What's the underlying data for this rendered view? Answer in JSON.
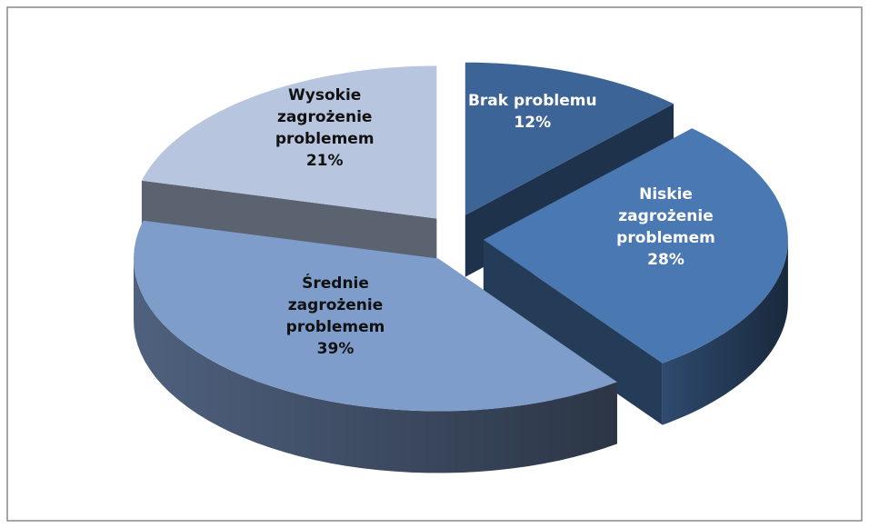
{
  "chart_data": {
    "type": "pie3d",
    "categories": [
      "Brak problemu",
      "Niskie zagrożenie problemem",
      "Średnie zagrożenie problemem",
      "Wysokie zagrożenie problemem"
    ],
    "values": [
      12,
      28,
      39,
      21
    ],
    "value_labels": [
      "12%",
      "28%",
      "39%",
      "21%"
    ],
    "colors": [
      "#3d6497",
      "#4a78b2",
      "#7f9dcb",
      "#b7c5df"
    ]
  }
}
